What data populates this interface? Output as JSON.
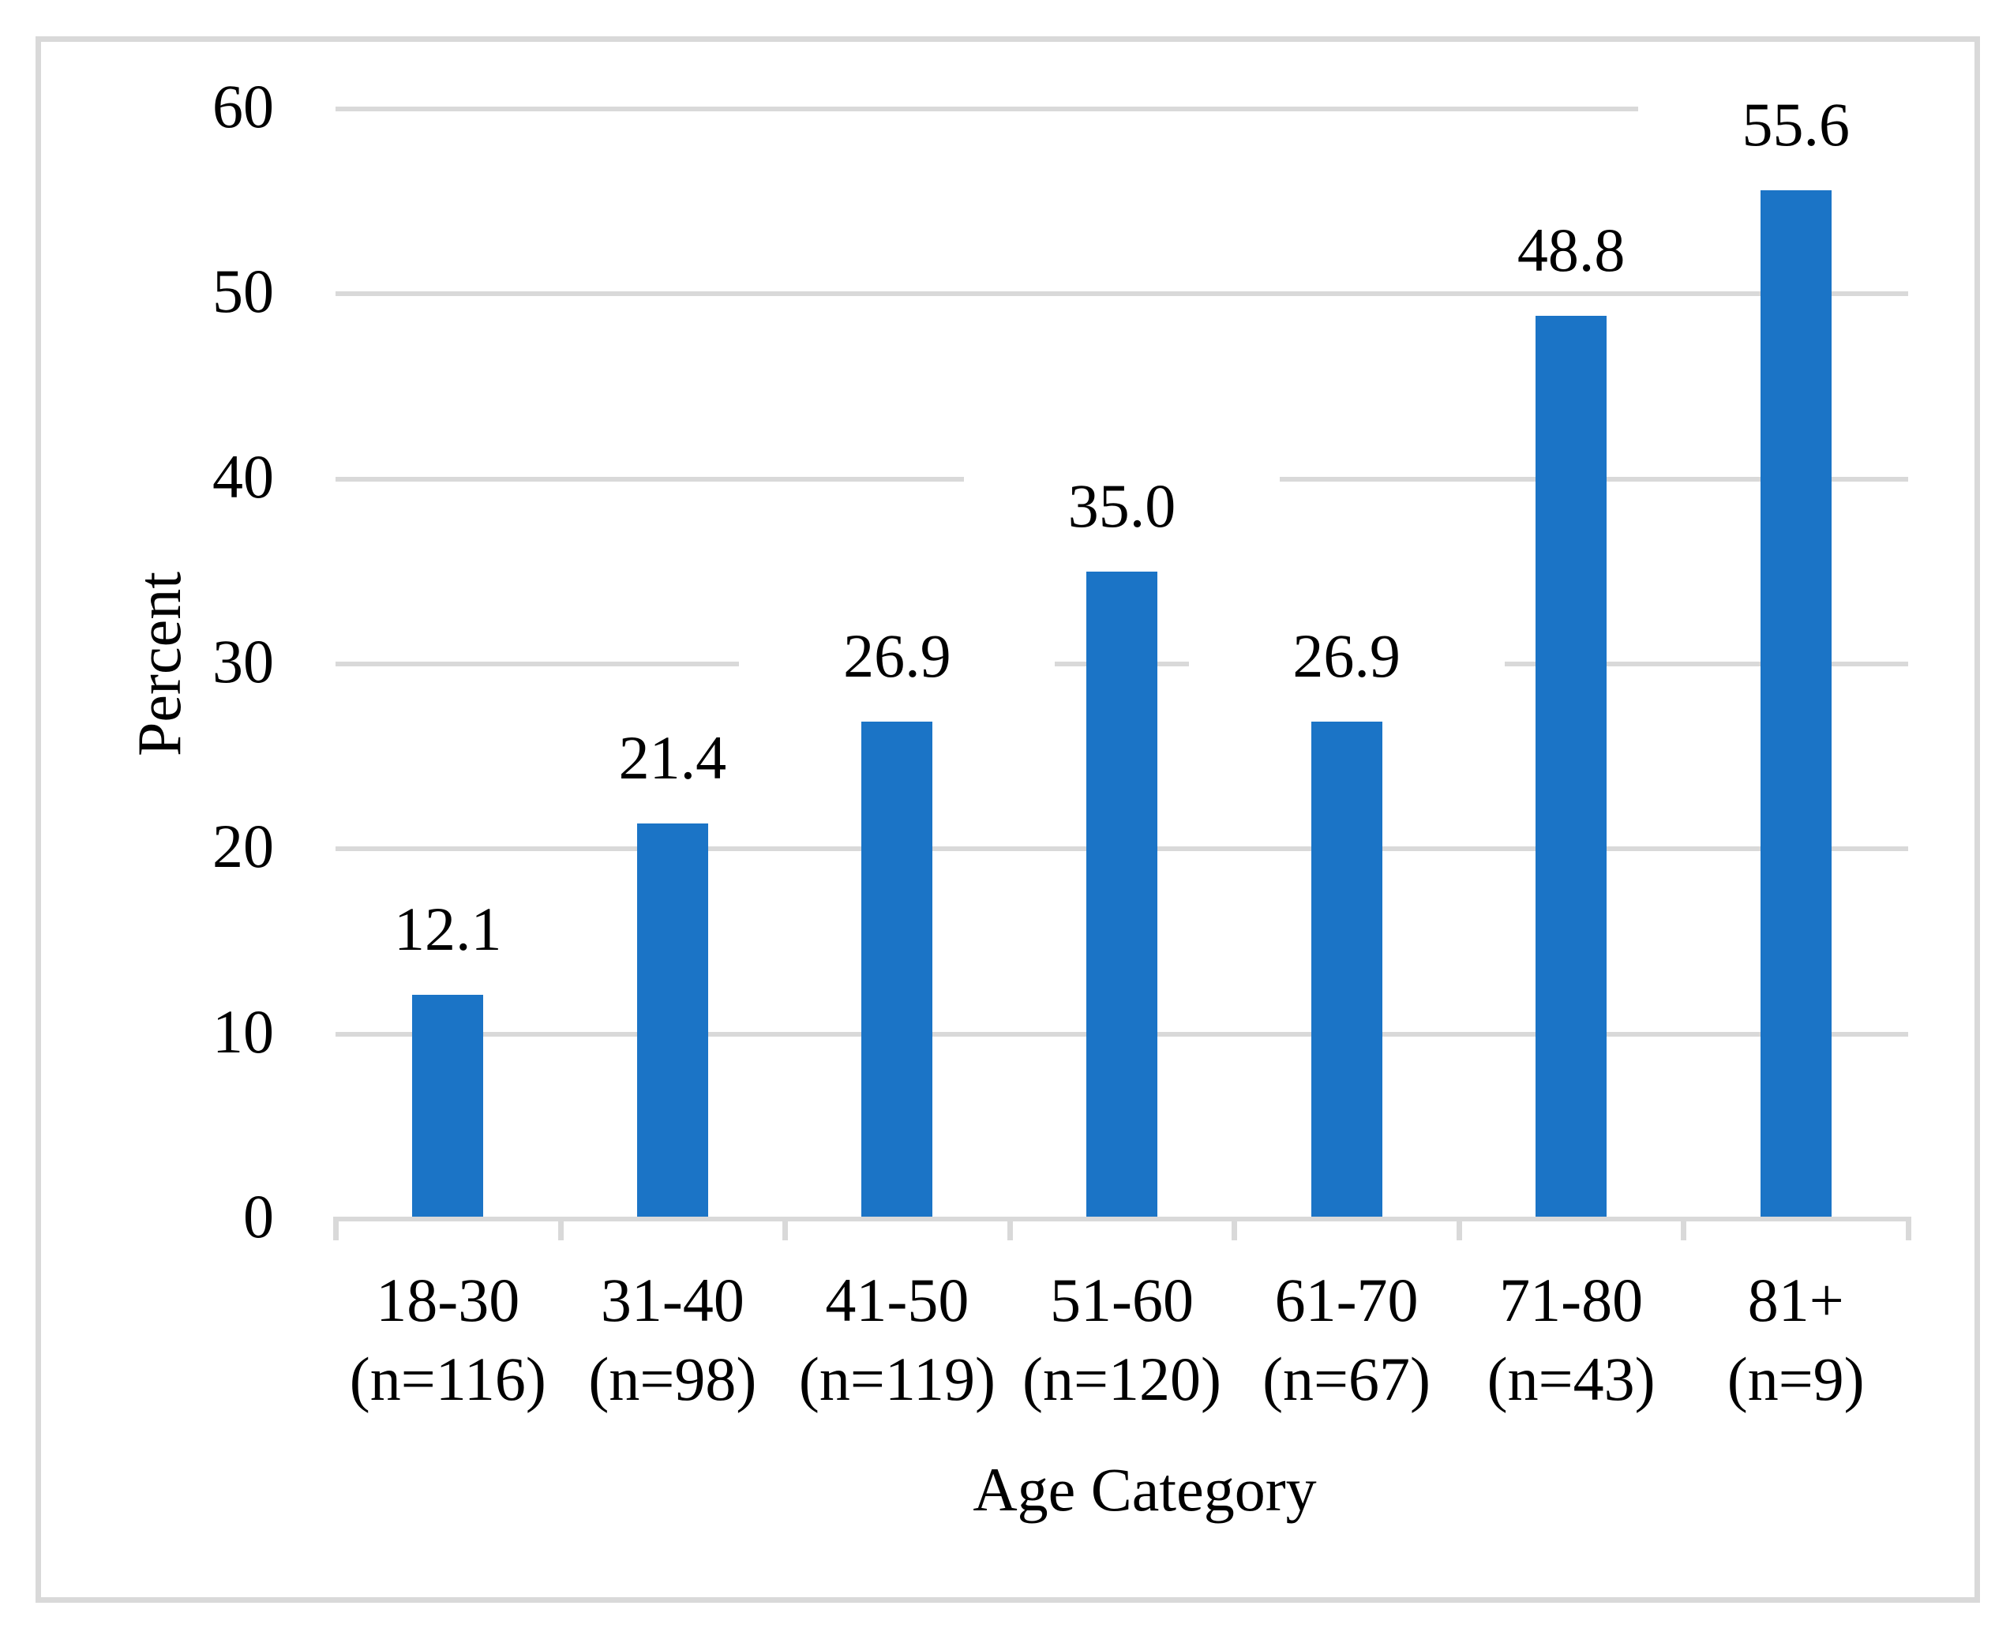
{
  "figure": {
    "background_color": "#FFFFFF",
    "frame_color": "#D9D9D9"
  },
  "chart_data": {
    "type": "bar",
    "title": "",
    "xlabel": "Age Category",
    "ylabel": "Percent",
    "categories": [
      "18-30",
      "31-40",
      "41-50",
      "51-60",
      "61-70",
      "71-80",
      "81+"
    ],
    "category_sublabels": [
      "(n=116)",
      "(n=98)",
      "(n=119)",
      "(n=120)",
      "(n=67)",
      "(n=43)",
      "(n=9)"
    ],
    "values": [
      12.1,
      21.4,
      26.9,
      35.0,
      26.9,
      48.8,
      55.6
    ],
    "data_labels": [
      "12.1",
      "21.4",
      "26.9",
      "35.0",
      "26.9",
      "48.8",
      "55.6"
    ],
    "yticks": [
      0,
      10,
      20,
      30,
      40,
      50,
      60
    ],
    "ytick_labels": [
      "0",
      "10",
      "20",
      "30",
      "40",
      "50",
      "60"
    ],
    "ylim": [
      0,
      60
    ],
    "grid": "on",
    "legend": "none",
    "bar_color": "#1B74C6",
    "gridline_color": "#D9D9D9",
    "axis_color": "#D9D9D9",
    "text_color": "#000000"
  }
}
